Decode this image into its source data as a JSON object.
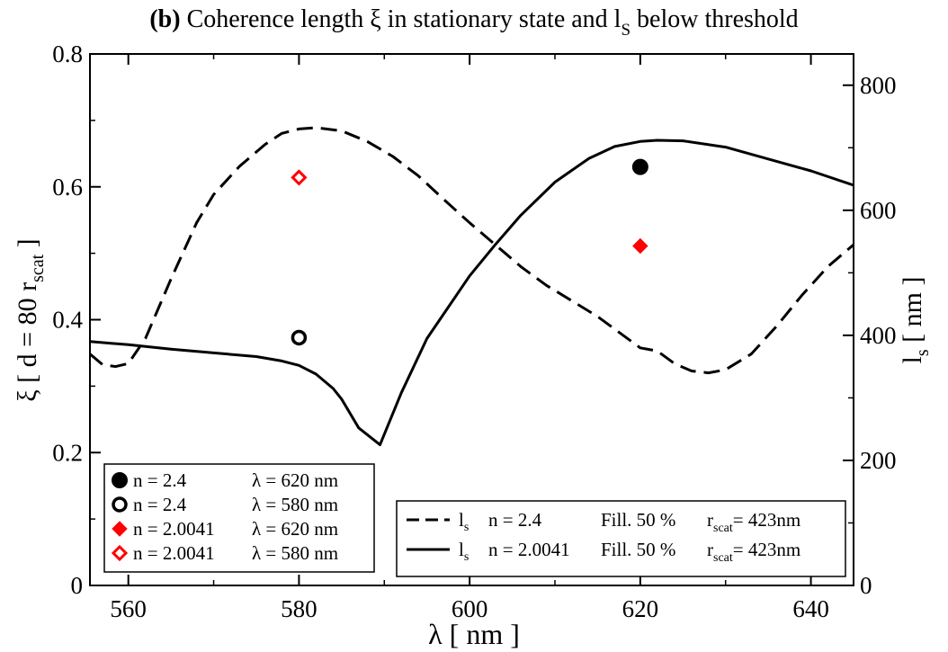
{
  "chart_data": {
    "type": "scatter",
    "title_bold": "(b)",
    "title_pre": " Coherence length ξ in stationary state  and l",
    "title_sub": "S",
    "title_post": "  below threshold",
    "xlabel": "λ  [ nm ]",
    "xlim": [
      555.5,
      645
    ],
    "xticks": [
      560,
      580,
      600,
      620,
      640
    ],
    "ylabel_left_pre": "ξ  [ d = 80 r",
    "ylabel_left_sub": "scat",
    "ylabel_left_post": " ]",
    "ylim_left": [
      0,
      0.8
    ],
    "yticks_left": [
      "0",
      "0.2",
      "0.4",
      "0.6",
      "0.8"
    ],
    "ylabel_right_main": "l",
    "ylabel_right_sub": "s",
    "ylabel_right_post": " [ nm ]",
    "ylim_right": [
      0,
      850
    ],
    "yticks_right": [
      "0",
      "200",
      "400",
      "600",
      "800"
    ],
    "points": [
      {
        "name": "n = 2.4",
        "lambda_label": "λ = 620 nm",
        "x": 620,
        "y": 0.63,
        "marker": "circle-filled",
        "color": "#000000"
      },
      {
        "name": "n = 2.4",
        "lambda_label": "λ = 580 nm",
        "x": 580,
        "y": 0.373,
        "marker": "circle-open",
        "color": "#000000"
      },
      {
        "name": "n = 2.0041",
        "lambda_label": "λ = 620 nm",
        "x": 620,
        "y": 0.511,
        "marker": "diamond-filled",
        "color": "#ff0000"
      },
      {
        "name": "n = 2.0041",
        "lambda_label": "λ = 580 nm",
        "x": 580,
        "y": 0.614,
        "marker": "diamond-open",
        "color": "#ff0000"
      }
    ],
    "series": [
      {
        "name_main": "l",
        "name_sub": "s",
        "n_label": "n = 2.4",
        "fill_label": "Fill. 50 %",
        "r_main": "r",
        "r_sub": "scat",
        "r_value": "= 423nm",
        "style": "dashed",
        "axis": "right",
        "x": [
          555.5,
          557,
          558.5,
          560,
          562,
          565,
          568,
          570,
          573,
          576,
          578,
          580,
          582,
          585,
          588,
          591,
          594,
          597,
          600,
          603,
          606,
          609,
          612,
          615,
          618,
          620,
          622,
          624,
          626,
          628,
          630,
          633,
          636,
          639,
          642,
          645
        ],
        "y": [
          370,
          353,
          350,
          355,
          395,
          490,
          580,
          625,
          670,
          705,
          723,
          730,
          732,
          727,
          710,
          686,
          655,
          617,
          580,
          545,
          510,
          480,
          455,
          430,
          400,
          380,
          375,
          355,
          343,
          340,
          345,
          370,
          415,
          465,
          510,
          545
        ]
      },
      {
        "name_main": "l",
        "name_sub": "s",
        "n_label": "n = 2.0041",
        "fill_label": "Fill. 50 %",
        "r_main": "r",
        "r_sub": "scat",
        "r_value": "= 423nm",
        "style": "solid",
        "axis": "right",
        "x": [
          555.5,
          560,
          565,
          570,
          575,
          578,
          580,
          582,
          584,
          585,
          587,
          589.5,
          592,
          595,
          597,
          600,
          603,
          606,
          610,
          614,
          617,
          620,
          622,
          625,
          630,
          635,
          640,
          645
        ],
        "y": [
          390,
          385,
          378,
          372,
          366,
          359,
          352,
          338,
          315,
          298,
          252,
          225,
          308,
          395,
          435,
          495,
          545,
          592,
          645,
          683,
          702,
          710,
          712,
          711,
          701,
          682,
          663,
          640
        ]
      }
    ]
  }
}
